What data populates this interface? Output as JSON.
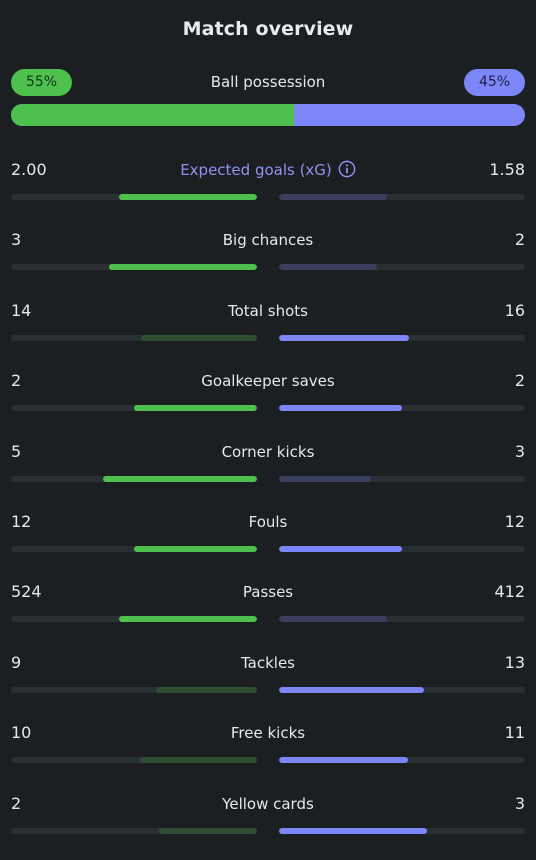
{
  "title": "Match overview",
  "colors": {
    "home": "#4ec04e",
    "home_dim": "#2f4d35",
    "away": "#7d86f6",
    "away_dim": "#3b3f5e",
    "accent": "#8c93f4",
    "background": "#1b1f22"
  },
  "possession": {
    "label": "Ball possession",
    "home_pct": "55%",
    "away_pct": "45%",
    "home_fraction": 0.55
  },
  "stats": [
    {
      "label": "Expected goals (xG)",
      "home": "2.00",
      "away": "1.58",
      "home_share": 0.56,
      "away_share": 0.44,
      "accent": true,
      "icon": "info-icon"
    },
    {
      "label": "Big chances",
      "home": "3",
      "away": "2",
      "home_share": 0.6,
      "away_share": 0.4
    },
    {
      "label": "Total shots",
      "home": "14",
      "away": "16",
      "home_share": 0.47,
      "away_share": 0.53
    },
    {
      "label": "Goalkeeper saves",
      "home": "2",
      "away": "2",
      "home_share": 0.5,
      "away_share": 0.5
    },
    {
      "label": "Corner kicks",
      "home": "5",
      "away": "3",
      "home_share": 0.625,
      "away_share": 0.375
    },
    {
      "label": "Fouls",
      "home": "12",
      "away": "12",
      "home_share": 0.5,
      "away_share": 0.5
    },
    {
      "label": "Passes",
      "home": "524",
      "away": "412",
      "home_share": 0.56,
      "away_share": 0.44
    },
    {
      "label": "Tackles",
      "home": "9",
      "away": "13",
      "home_share": 0.41,
      "away_share": 0.59
    },
    {
      "label": "Free kicks",
      "home": "10",
      "away": "11",
      "home_share": 0.476,
      "away_share": 0.524
    },
    {
      "label": "Yellow cards",
      "home": "2",
      "away": "3",
      "home_share": 0.4,
      "away_share": 0.6
    }
  ]
}
